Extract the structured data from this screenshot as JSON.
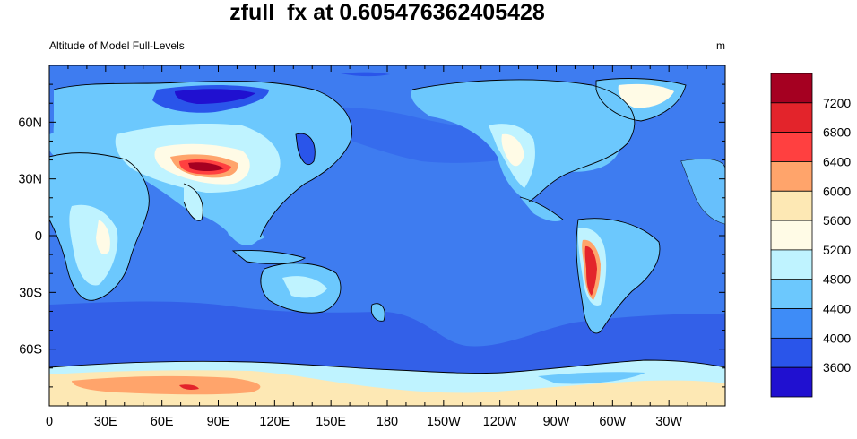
{
  "title": "zfull_fx at 0.605476362405428",
  "left_string": "Altitude of Model Full-Levels",
  "right_string": "m",
  "map": {
    "projection": "cylindrical-equidistant",
    "center_lon": 180,
    "lon_range": [
      0,
      360
    ],
    "lat_range": [
      -90,
      90
    ],
    "lon_tick_labels": [
      "0",
      "30E",
      "60E",
      "90E",
      "120E",
      "150E",
      "180",
      "150W",
      "120W",
      "90W",
      "60W",
      "30W"
    ],
    "lat_tick_labels": [
      "60N",
      "30N",
      "0",
      "30S",
      "60S"
    ],
    "lat_tick_values": [
      60,
      30,
      0,
      -30,
      -60
    ],
    "ocean_color": "#3e7cf0",
    "high_ocean_band_color": "#3360e8"
  },
  "colorbar": {
    "labels": [
      "7200",
      "6800",
      "6400",
      "6000",
      "5600",
      "5200",
      "4800",
      "4400",
      "4000",
      "3600"
    ],
    "colors": [
      "#a50021",
      "#e3242b",
      "#ff4040",
      "#ffa46b",
      "#fde8b4",
      "#fffbe6",
      "#bff3ff",
      "#6cc8fd",
      "#3e8cf7",
      "#2a55ea",
      "#2010d0"
    ]
  },
  "chart_data": {
    "type": "heatmap",
    "title": "zfull_fx at 0.605476362405428",
    "left_string": "Altitude of Model Full-Levels",
    "units": "m",
    "contour_levels": [
      3600,
      4000,
      4400,
      4800,
      5200,
      5600,
      6000,
      6400,
      6800,
      7200
    ],
    "x_ticks": [
      "0",
      "30E",
      "60E",
      "90E",
      "120E",
      "150E",
      "180",
      "150W",
      "120W",
      "90W",
      "60W",
      "30W"
    ],
    "y_ticks": [
      "60N",
      "30N",
      "0",
      "30S",
      "60S"
    ]
  }
}
